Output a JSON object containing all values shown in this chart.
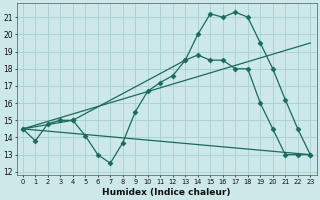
{
  "xlabel": "Humidex (Indice chaleur)",
  "background_color": "#cce8e8",
  "grid_color": "#aad0d0",
  "line_color": "#1a6b5a",
  "xlim": [
    -0.5,
    23.5
  ],
  "ylim": [
    11.8,
    21.8
  ],
  "yticks": [
    12,
    13,
    14,
    15,
    16,
    17,
    18,
    19,
    20,
    21
  ],
  "xticks": [
    0,
    1,
    2,
    3,
    4,
    5,
    6,
    7,
    8,
    9,
    10,
    11,
    12,
    13,
    14,
    15,
    16,
    17,
    18,
    19,
    20,
    21,
    22,
    23
  ],
  "line1_x": [
    0,
    1,
    2,
    3,
    4,
    5,
    6,
    7,
    8,
    9,
    10,
    11,
    12,
    13,
    14,
    15,
    16,
    17,
    18,
    19,
    20,
    21,
    22,
    23
  ],
  "line1_y": [
    14.5,
    13.8,
    14.8,
    15.0,
    15.0,
    14.1,
    13.0,
    12.5,
    13.7,
    15.5,
    16.7,
    17.2,
    17.6,
    18.5,
    18.8,
    18.5,
    18.5,
    18.0,
    18.0,
    16.0,
    14.5,
    13.0,
    13.0,
    13.0
  ],
  "line2_x": [
    0,
    4,
    13,
    14,
    15,
    16,
    17,
    18,
    19,
    20,
    21,
    22,
    23
  ],
  "line2_y": [
    14.5,
    15.0,
    18.5,
    20.0,
    21.2,
    21.0,
    21.3,
    21.0,
    19.5,
    18.0,
    16.2,
    14.5,
    13.0
  ],
  "line3_x": [
    0,
    23
  ],
  "line3_y": [
    14.5,
    19.5
  ],
  "line4_x": [
    0,
    23
  ],
  "line4_y": [
    14.5,
    13.0
  ]
}
